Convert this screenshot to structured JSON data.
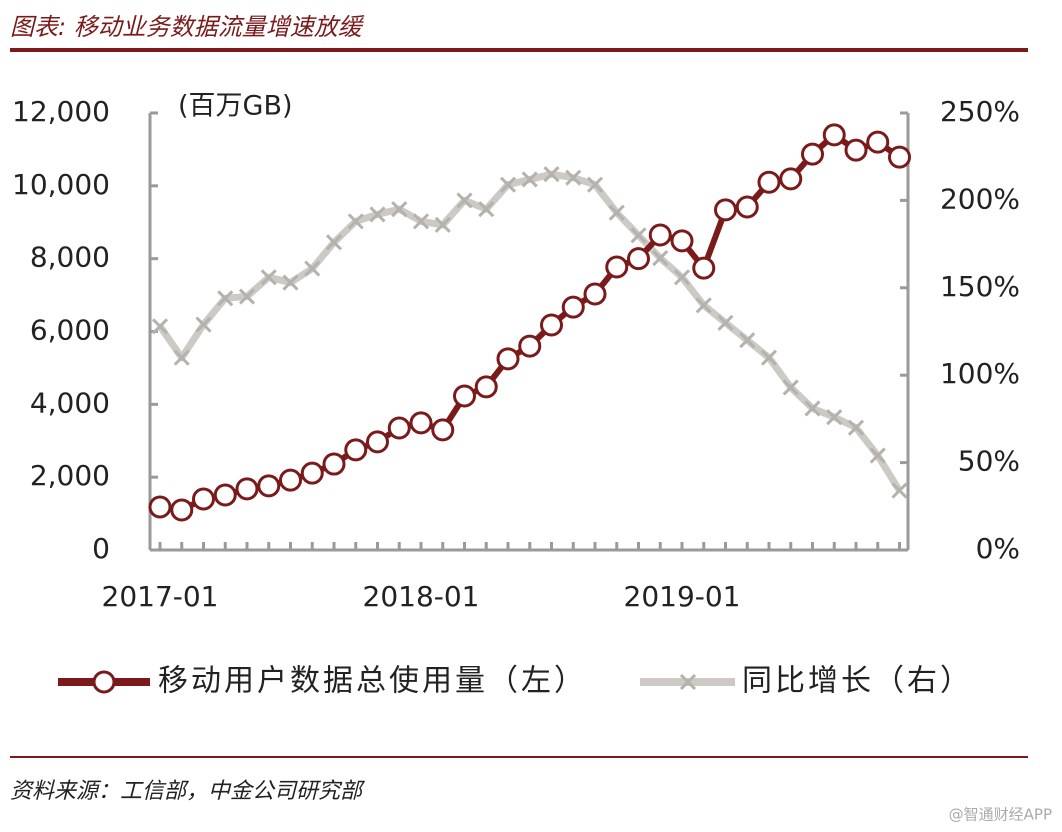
{
  "chart_data": {
    "type": "line",
    "title": "图表: 移动业务数据流量增速放缓",
    "y_label": "(百万GB)",
    "source": "资料来源：工信部，中金公司研究部",
    "watermark": "@智通财经APP",
    "categories": [
      "2017-01",
      null,
      null,
      null,
      null,
      null,
      null,
      null,
      null,
      null,
      null,
      null,
      "2018-01",
      null,
      null,
      null,
      null,
      null,
      null,
      null,
      null,
      null,
      null,
      null,
      "2019-01",
      null,
      null,
      null,
      null,
      null,
      null,
      null,
      null,
      null,
      null
    ],
    "series": [
      {
        "name": "移动用户数据总使用量（左）",
        "color": "#7a1a1a",
        "axis": "y",
        "values": [
          1180,
          1100,
          1400,
          1510,
          1680,
          1760,
          1920,
          2110,
          2360,
          2750,
          2970,
          3350,
          3490,
          3300,
          4230,
          4480,
          5250,
          5600,
          6180,
          6670,
          7030,
          7770,
          8000,
          8650,
          8490,
          7740,
          9340,
          9420,
          10100,
          10190,
          10870,
          11400,
          10980,
          11200,
          10790
        ]
      },
      {
        "name": "同比增长（右）",
        "color": "#cdcac5",
        "axis": "y2",
        "values": [
          128,
          110,
          129,
          144,
          145,
          156,
          153,
          161,
          176,
          188,
          192,
          195,
          188,
          186,
          200,
          195,
          209,
          212,
          215,
          213,
          209,
          193,
          180,
          167,
          156,
          140,
          130,
          120,
          110,
          93,
          81,
          76,
          70,
          54,
          34
        ]
      }
    ],
    "ylim": [
      0,
      12000
    ],
    "yticks": [
      0,
      {
        "value": 2000,
        "label": "2,000"
      },
      {
        "value": 4000,
        "label": "4,000"
      },
      {
        "value": 6000,
        "label": "6,000"
      },
      {
        "value": 8000,
        "label": "8,000"
      },
      {
        "value": 10000,
        "label": "10,000"
      },
      {
        "value": 12000,
        "label": "12,000"
      }
    ],
    "y2lim": [
      0,
      250
    ],
    "y2ticks": [
      {
        "value": 0,
        "label": "0%"
      },
      {
        "value": 50,
        "label": "50%"
      },
      {
        "value": 100,
        "label": "100%"
      },
      {
        "value": 150,
        "label": "150%"
      },
      {
        "value": 200,
        "label": "200%"
      },
      {
        "value": 250,
        "label": "250%"
      }
    ],
    "legend": "bottom"
  }
}
